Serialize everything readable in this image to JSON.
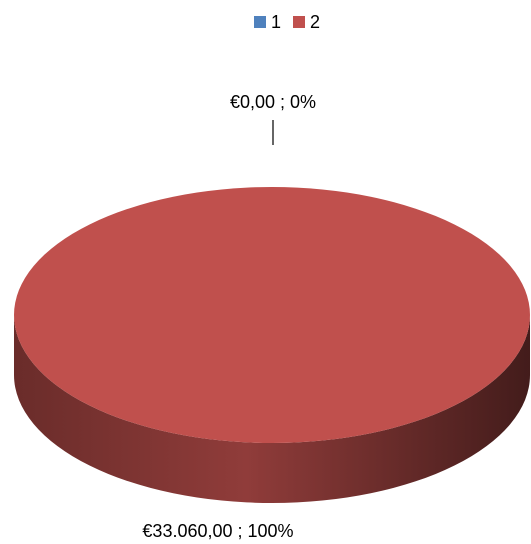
{
  "chart_data": {
    "type": "pie",
    "categories": [
      "1",
      "2"
    ],
    "values": [
      0,
      33060
    ],
    "value_labels": [
      "€0,00 ; 0%",
      "€33.060,00 ; 100%"
    ],
    "colors": [
      "#4f81bd",
      "#c0504d"
    ],
    "legend": "top"
  }
}
